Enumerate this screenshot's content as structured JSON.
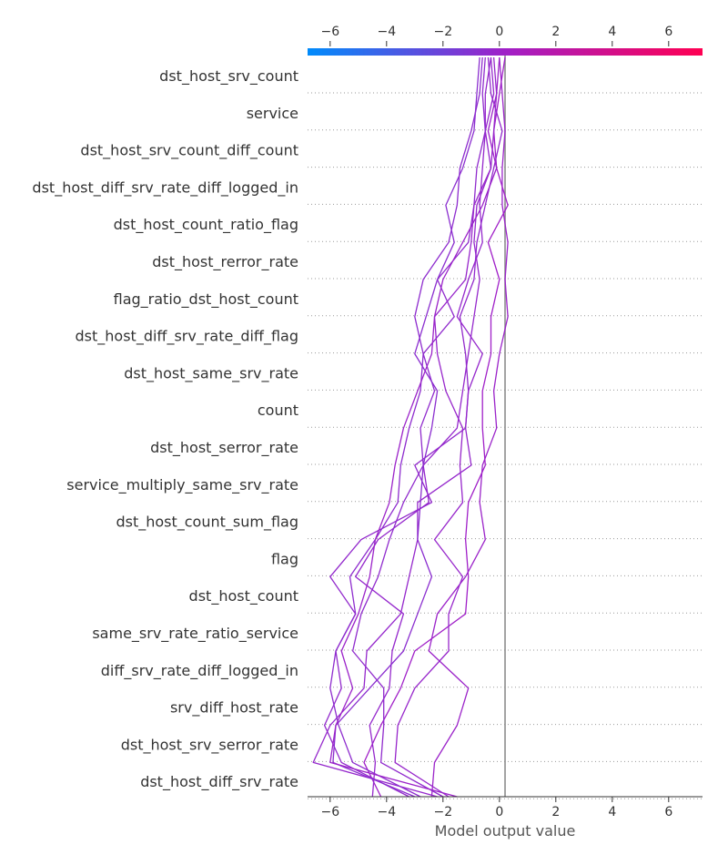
{
  "chart_data": {
    "type": "line",
    "title": "",
    "xlabel": "Model output value",
    "ylabel": "",
    "xlim": [
      -6.8,
      7.2
    ],
    "x_ticks": [
      "−6",
      "−4",
      "−2",
      "0",
      "2",
      "4",
      "6"
    ],
    "x_tick_values": [
      -6,
      -4,
      -2,
      0,
      2,
      4,
      6
    ],
    "base_value": 0.2,
    "features": [
      "dst_host_srv_count",
      "service",
      "dst_host_srv_count_diff_count",
      "dst_host_diff_srv_rate_diff_logged_in",
      "dst_host_count_ratio_flag",
      "dst_host_rerror_rate",
      "flag_ratio_dst_host_count",
      "dst_host_diff_srv_rate_diff_flag",
      "dst_host_same_srv_rate",
      "count",
      "dst_host_serror_rate",
      "service_multiply_same_srv_rate",
      "dst_host_count_sum_flag",
      "flag",
      "dst_host_count",
      "same_srv_rate_ratio_service",
      "diff_srv_rate_diff_logged_in",
      "srv_diff_host_rate",
      "dst_host_srv_serror_rate",
      "dst_host_diff_srv_rate"
    ],
    "colormap": [
      "#008bfb",
      "#ff0052"
    ],
    "series": [
      {
        "values": [
          0.0,
          0.1,
          0.2,
          0.1,
          0.1,
          0.3,
          0.2,
          0.3,
          0.0,
          -0.2,
          -0.1,
          -0.6,
          -0.7,
          -0.5,
          -1.2,
          -2.2,
          -2.5,
          -1.1,
          -1.5,
          -2.3,
          -2.4
        ]
      },
      {
        "values": [
          0.2,
          0.0,
          -0.2,
          -0.1,
          0.3,
          -0.4,
          0.0,
          -0.3,
          -0.3,
          -0.6,
          -0.6,
          -0.5,
          -1.1,
          -1.2,
          -1.1,
          -1.2,
          -3.0,
          -3.5,
          -4.2,
          -4.8,
          -4.2
        ]
      },
      {
        "values": [
          -0.3,
          -0.5,
          -0.5,
          -0.3,
          -0.8,
          -0.9,
          -0.7,
          -0.9,
          -1.1,
          -1.3,
          -1.5,
          -2.7,
          -2.5,
          -4.3,
          -5.1,
          -3.4,
          -3.8,
          -3.9,
          -4.6,
          -4.4,
          -4.5
        ]
      },
      {
        "values": [
          -0.4,
          -0.3,
          0.1,
          -0.2,
          -0.5,
          -0.8,
          -0.9,
          -1.4,
          -1.2,
          -1.1,
          -1.2,
          -3.0,
          -2.4,
          -4.9,
          -6.0,
          -5.1,
          -5.8,
          -5.6,
          -6.2,
          -5.6,
          -3.2
        ]
      },
      {
        "values": [
          -0.3,
          -0.2,
          -0.5,
          -0.6,
          -0.7,
          -0.6,
          -1.1,
          -1.5,
          -0.6,
          -1.1,
          -1.2,
          -1.0,
          -2.9,
          -2.9,
          -3.2,
          -3.5,
          -4.7,
          -4.8,
          -6.0,
          -6.6,
          -2.2
        ]
      },
      {
        "values": [
          -0.5,
          -0.6,
          -0.5,
          -0.8,
          -0.9,
          -1.1,
          -2.2,
          -1.6,
          -2.7,
          -2.3,
          -2.8,
          -2.7,
          -3.4,
          -3.9,
          -4.3,
          -4.9,
          -5.2,
          -4.1,
          -4.1,
          -4.2,
          -2.0
        ]
      },
      {
        "values": [
          -0.7,
          -0.8,
          -0.9,
          -1.3,
          -1.9,
          -1.6,
          -2.2,
          -2.6,
          -3.0,
          -2.2,
          -2.4,
          -2.7,
          -2.8,
          -2.9,
          -2.4,
          -2.9,
          -3.4,
          -4.6,
          -5.8,
          -5.9,
          -3.0
        ]
      },
      {
        "values": [
          -0.6,
          -0.7,
          -1.0,
          -1.4,
          -1.5,
          -1.8,
          -2.7,
          -3.0,
          -2.7,
          -2.8,
          -3.2,
          -3.5,
          -3.6,
          -4.4,
          -5.3,
          -5.1,
          -5.8,
          -6.0,
          -5.7,
          -5.2,
          -2.8
        ]
      },
      {
        "values": [
          0.0,
          -0.1,
          -0.4,
          -0.1,
          -0.6,
          -1.3,
          -2.0,
          -2.3,
          -2.4,
          -2.9,
          -3.4,
          -3.7,
          -3.9,
          -4.4,
          -4.6,
          -5.0,
          -5.6,
          -5.2,
          -5.8,
          -6.0,
          -1.5
        ]
      },
      {
        "values": [
          -0.2,
          -0.1,
          -0.2,
          -0.3,
          -0.9,
          -1.0,
          -1.2,
          -2.3,
          -2.2,
          -1.9,
          -1.3,
          -1.4,
          -1.3,
          -2.3,
          -1.3,
          -1.8,
          -1.8,
          -3.0,
          -3.6,
          -3.7,
          -1.8
        ]
      }
    ]
  }
}
